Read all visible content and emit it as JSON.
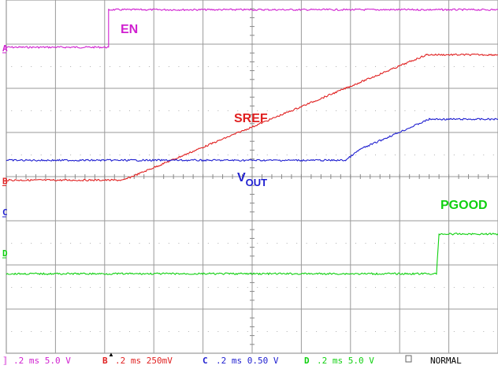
{
  "chart_data": {
    "type": "line",
    "title": "",
    "xlabel": "",
    "ylabel": "",
    "grid": true,
    "x_divisions": 10,
    "y_divisions": 8,
    "time_per_div_ms": 0.2,
    "trigger_marker": "▲",
    "series": [
      {
        "name": "EN",
        "marker": "A",
        "color": "#d020d0",
        "points": [
          [
            0,
            6.93
          ],
          [
            2.08,
            6.93
          ],
          [
            2.08,
            7.78
          ],
          [
            10,
            7.78
          ]
        ]
      },
      {
        "name": "SREF",
        "marker": "B",
        "color": "#e02020",
        "points": [
          [
            0,
            3.92
          ],
          [
            2.38,
            3.92
          ],
          [
            8.55,
            6.76
          ],
          [
            10,
            6.76
          ]
        ]
      },
      {
        "name": "V",
        "name_sub": "OUT",
        "marker": "C",
        "color": "#2020d0",
        "points": [
          [
            0,
            4.37
          ],
          [
            6.9,
            4.37
          ],
          [
            7.2,
            4.62
          ],
          [
            8.6,
            5.3
          ],
          [
            10,
            5.3
          ]
        ]
      },
      {
        "name": "PGOOD",
        "marker": "D",
        "color": "#10d010",
        "points": [
          [
            0,
            1.8
          ],
          [
            8.75,
            1.8
          ],
          [
            8.8,
            2.7
          ],
          [
            10,
            2.7
          ]
        ]
      }
    ]
  },
  "status_bar": {
    "a_marker": "A",
    "a_text": ".2 ms 5.0 V",
    "b_marker": "B",
    "b_text": ".2 ms 250mV",
    "c_marker": "C",
    "c_text": ".2 ms 0.50 V",
    "d_marker": "D",
    "d_text": ".2 ms 5.0 V",
    "mode": "NORMAL"
  }
}
